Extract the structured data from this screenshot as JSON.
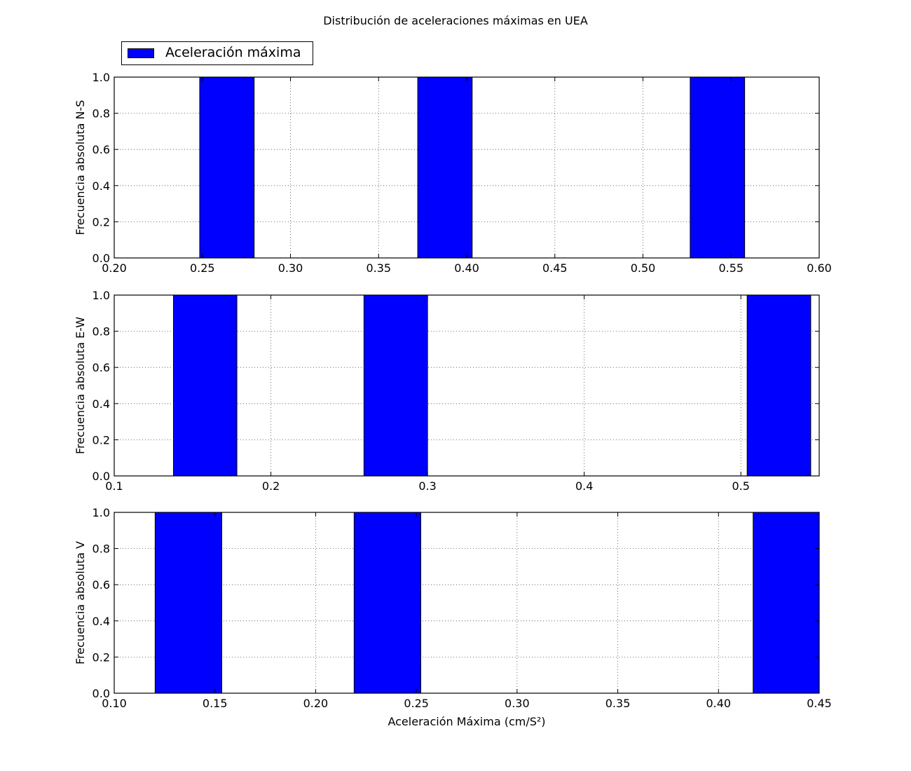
{
  "chart_data": {
    "title": "Distribución de aceleraciones máximas en UEA",
    "legend": {
      "label": "Aceleración máxima",
      "color": "#0000ff",
      "location": "upper-left"
    },
    "grid": true,
    "xlabel": "Aceleración Máxima (cm/S²)",
    "subplots": [
      {
        "type": "bar",
        "ylabel": "Frecuencia absoluta N-S",
        "xlim": [
          0.2,
          0.6
        ],
        "ylim": [
          0.0,
          1.0
        ],
        "xticks": [
          "0.20",
          "0.25",
          "0.30",
          "0.35",
          "0.40",
          "0.45",
          "0.50",
          "0.55",
          "0.60"
        ],
        "yticks": [
          "0.0",
          "0.2",
          "0.4",
          "0.6",
          "0.8",
          "1.0"
        ],
        "bars": [
          {
            "x0": 0.2485,
            "x1": 0.2794,
            "value": 1
          },
          {
            "x0": 0.3722,
            "x1": 0.4031,
            "value": 1
          },
          {
            "x0": 0.5268,
            "x1": 0.5577,
            "value": 1
          }
        ]
      },
      {
        "type": "bar",
        "ylabel": "Frecuencia absoluta E-W",
        "xlim": [
          0.1,
          0.55
        ],
        "ylim": [
          0.0,
          1.0
        ],
        "xticks": [
          "0.1",
          "0.2",
          "0.3",
          "0.4",
          "0.5"
        ],
        "yticks": [
          "0.0",
          "0.2",
          "0.4",
          "0.6",
          "0.8",
          "1.0"
        ],
        "bars": [
          {
            "x0": 0.1378,
            "x1": 0.1783,
            "value": 1
          },
          {
            "x0": 0.2594,
            "x1": 0.3,
            "value": 1
          },
          {
            "x0": 0.504,
            "x1": 0.5446,
            "value": 1
          }
        ]
      },
      {
        "type": "bar",
        "ylabel": "Frecuencia absoluta V",
        "xlim": [
          0.1,
          0.45
        ],
        "ylim": [
          0.0,
          1.0
        ],
        "xticks": [
          "0.10",
          "0.15",
          "0.20",
          "0.25",
          "0.30",
          "0.35",
          "0.40",
          "0.45"
        ],
        "yticks": [
          "0.0",
          "0.2",
          "0.4",
          "0.6",
          "0.8",
          "1.0"
        ],
        "bars": [
          {
            "x0": 0.1203,
            "x1": 0.1534,
            "value": 1
          },
          {
            "x0": 0.2191,
            "x1": 0.2522,
            "value": 1
          },
          {
            "x0": 0.4172,
            "x1": 0.45,
            "value": 1
          }
        ]
      }
    ]
  }
}
